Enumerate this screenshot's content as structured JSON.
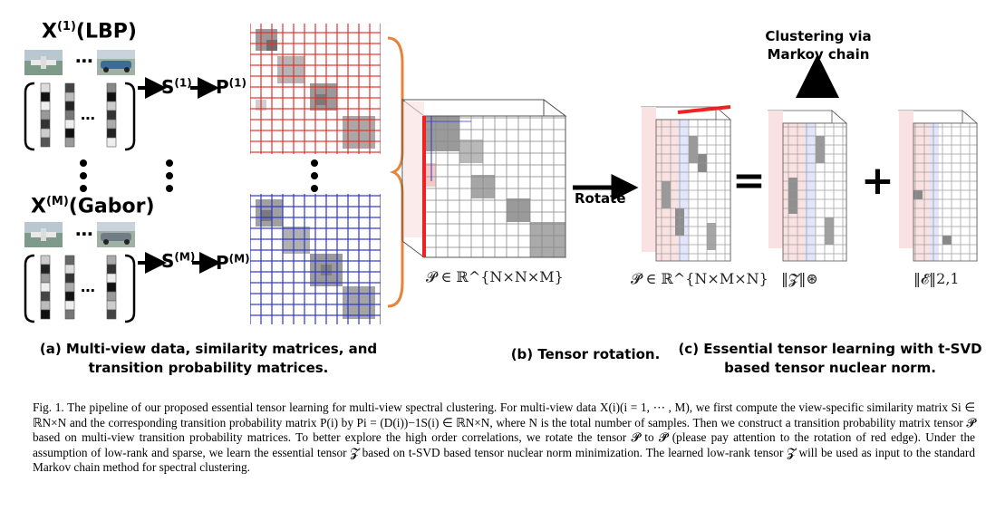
{
  "view1": {
    "base": "X",
    "sup": "(1)",
    "name": "(LBP)",
    "s_label": "S",
    "s_sup": "(1)",
    "p_label": "P",
    "p_sup": "(1)"
  },
  "viewM": {
    "base": "X",
    "sup": "(M)",
    "name": "(Gabor)",
    "s_label": "S",
    "s_sup": "(M)",
    "p_label": "P",
    "p_sup": "(M)"
  },
  "labels": {
    "rotate": "Rotate",
    "clustering_line1": "Clustering via",
    "clustering_line2": "Markov chain",
    "equals": "=",
    "plus": "+",
    "dots": "⋯"
  },
  "math": {
    "tensor_p": "𝓟 ∈ ℝ^{N×N×M}",
    "tensor_p_tilde": "𝓟̃ ∈ ℝ^{N×M×N}",
    "tensor_z_norm": "‖𝓩‖⊛",
    "tensor_e_norm": "‖𝓔‖2,1"
  },
  "subcaptions": {
    "a_line1": "(a) Multi-view data, similarity matrices, and",
    "a_line2": "transition probability matrices.",
    "b": "(b) Tensor rotation.",
    "c_line1": "(c) Essential tensor learning with t-SVD",
    "c_line2": "based tensor nuclear norm."
  },
  "caption": {
    "fig": "Fig. 1.",
    "text": "The pipeline of our proposed essential tensor learning for multi-view spectral clustering. For multi-view data X(i)(i = 1, ⋯ , M), we first compute the view-specific similarity matrix Si ∈ ℝN×N and the corresponding transition probability matrix P(i) by Pi = (D(i))−1S(i) ∈ ℝN×N, where N is the total number of samples. Then we construct a transition probability matrix tensor 𝓟 based on multi-view transition probability matrices. To better explore the high order correlations, we rotate the tensor 𝓟 to 𝓟̃ (please pay attention to the rotation of red edge). Under the assumption of low-rank and sparse, we learn the essential tensor 𝓩 based on t-SVD based tensor nuclear norm minimization. The learned low-rank tensor 𝓩 will be used as input to the standard Markov chain method for spectral clustering."
  },
  "colors": {
    "red_grid": "#e0322e",
    "blue_grid": "#2f36c8",
    "orange_brace": "#e8833a",
    "red_edge": "#ee2222",
    "arrow": "#000000"
  },
  "icons": [
    "car-thumbnail",
    "airplane-thumbnail",
    "arrow-right-icon",
    "arrow-up-icon",
    "vertical-dots-icon"
  ]
}
